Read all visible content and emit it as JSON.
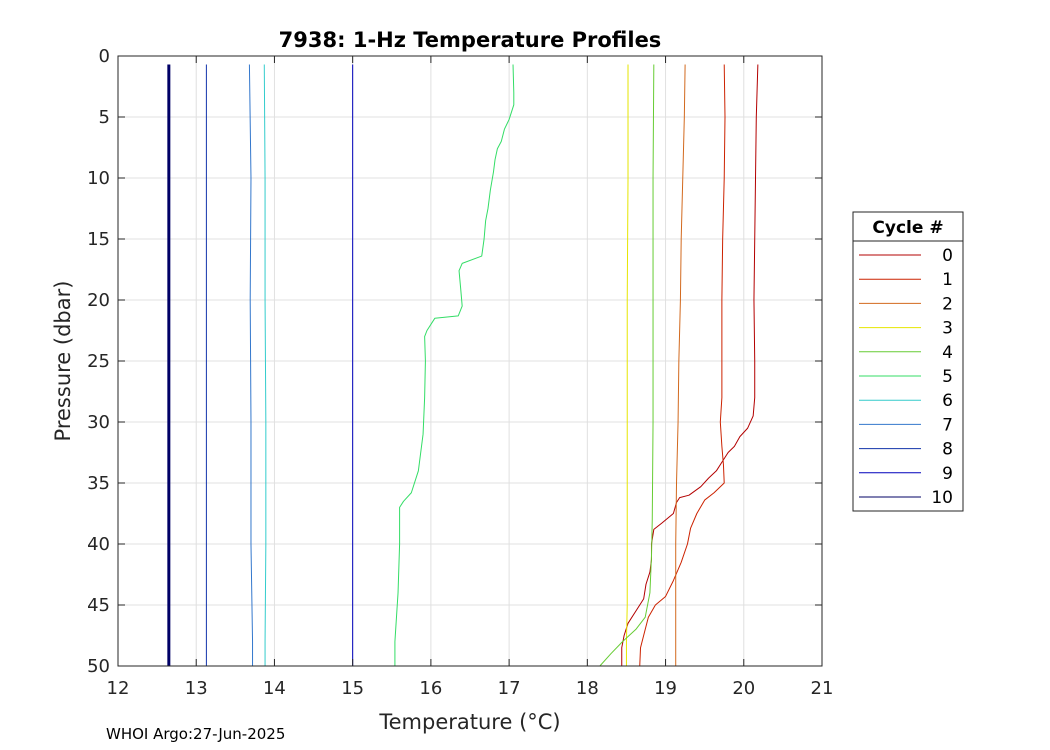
{
  "chart_data": {
    "type": "line",
    "title": "7938: 1-Hz Temperature Profiles",
    "xlabel": "Temperature (°C)",
    "ylabel": "Pressure (dbar)",
    "xlim": [
      12,
      21
    ],
    "ylim": [
      0,
      50
    ],
    "y_reversed": true,
    "grid": true,
    "x_ticks": [
      "12",
      "13",
      "14",
      "15",
      "16",
      "17",
      "18",
      "19",
      "20",
      "21"
    ],
    "y_ticks": [
      "0",
      "5",
      "10",
      "15",
      "20",
      "25",
      "30",
      "35",
      "40",
      "45",
      "50"
    ],
    "legend": {
      "title": "Cycle #",
      "placement": "right"
    },
    "series": [
      {
        "name": "0",
        "color": "#b30000",
        "points": [
          [
            20.18,
            0.7
          ],
          [
            20.16,
            5
          ],
          [
            20.15,
            10
          ],
          [
            20.14,
            15
          ],
          [
            20.13,
            20
          ],
          [
            20.14,
            25
          ],
          [
            20.14,
            28
          ],
          [
            20.12,
            29.5
          ],
          [
            20.05,
            30.5
          ],
          [
            19.95,
            31.2
          ],
          [
            19.88,
            32
          ],
          [
            19.8,
            32.5
          ],
          [
            19.73,
            33.2
          ],
          [
            19.65,
            34
          ],
          [
            19.55,
            34.6
          ],
          [
            19.45,
            35.3
          ],
          [
            19.3,
            36
          ],
          [
            19.18,
            36.2
          ],
          [
            19.14,
            36.6
          ],
          [
            19.1,
            37.5
          ],
          [
            18.95,
            38.3
          ],
          [
            18.85,
            38.8
          ],
          [
            18.82,
            40
          ],
          [
            18.82,
            41.3
          ],
          [
            18.8,
            42.3
          ],
          [
            18.75,
            43.3
          ],
          [
            18.72,
            44.5
          ],
          [
            18.62,
            45.5
          ],
          [
            18.52,
            46.5
          ],
          [
            18.47,
            47.5
          ],
          [
            18.44,
            48.5
          ],
          [
            18.44,
            50
          ]
        ]
      },
      {
        "name": "1",
        "color": "#cc2200",
        "points": [
          [
            19.75,
            0.7
          ],
          [
            19.76,
            5
          ],
          [
            19.75,
            10
          ],
          [
            19.73,
            15
          ],
          [
            19.72,
            20
          ],
          [
            19.72,
            25
          ],
          [
            19.72,
            28
          ],
          [
            19.7,
            30
          ],
          [
            19.72,
            32
          ],
          [
            19.74,
            33.5
          ],
          [
            19.75,
            35
          ],
          [
            19.62,
            35.8
          ],
          [
            19.5,
            36.4
          ],
          [
            19.4,
            37.5
          ],
          [
            19.32,
            38.7
          ],
          [
            19.28,
            40
          ],
          [
            19.2,
            41.5
          ],
          [
            19.1,
            43
          ],
          [
            19.0,
            44.3
          ],
          [
            18.87,
            45
          ],
          [
            18.78,
            46
          ],
          [
            18.72,
            47.5
          ],
          [
            18.68,
            48.5
          ],
          [
            18.67,
            50
          ]
        ]
      },
      {
        "name": "2",
        "color": "#d2691e",
        "points": [
          [
            19.25,
            0.7
          ],
          [
            19.24,
            5
          ],
          [
            19.22,
            10
          ],
          [
            19.2,
            15
          ],
          [
            19.19,
            20
          ],
          [
            19.17,
            25
          ],
          [
            19.16,
            30
          ],
          [
            19.14,
            35
          ],
          [
            19.13,
            40
          ],
          [
            19.13,
            45
          ],
          [
            19.13,
            50
          ]
        ]
      },
      {
        "name": "3",
        "color": "#e6e600",
        "points": [
          [
            18.52,
            0.7
          ],
          [
            18.52,
            10
          ],
          [
            18.51,
            20
          ],
          [
            18.51,
            30
          ],
          [
            18.51,
            40
          ],
          [
            18.51,
            45
          ],
          [
            18.5,
            48
          ],
          [
            18.5,
            50
          ]
        ]
      },
      {
        "name": "4",
        "color": "#66cc33",
        "points": [
          [
            18.85,
            0.7
          ],
          [
            18.84,
            10
          ],
          [
            18.84,
            20
          ],
          [
            18.84,
            30
          ],
          [
            18.83,
            38
          ],
          [
            18.82,
            41
          ],
          [
            18.8,
            44
          ],
          [
            18.74,
            46
          ],
          [
            18.62,
            47
          ],
          [
            18.45,
            48
          ],
          [
            18.3,
            49
          ],
          [
            18.16,
            50
          ]
        ]
      },
      {
        "name": "5",
        "color": "#33dd66",
        "points": [
          [
            17.05,
            0.7
          ],
          [
            17.06,
            3
          ],
          [
            17.06,
            4
          ],
          [
            17.0,
            5.2
          ],
          [
            16.94,
            6
          ],
          [
            16.9,
            7
          ],
          [
            16.85,
            7.6
          ],
          [
            16.82,
            8.5
          ],
          [
            16.8,
            9.5
          ],
          [
            16.76,
            11
          ],
          [
            16.73,
            12.5
          ],
          [
            16.7,
            13.5
          ],
          [
            16.68,
            15
          ],
          [
            16.65,
            16.4
          ],
          [
            16.4,
            17
          ],
          [
            16.36,
            17.6
          ],
          [
            16.38,
            19
          ],
          [
            16.4,
            20.5
          ],
          [
            16.35,
            21.3
          ],
          [
            16.05,
            21.5
          ],
          [
            15.95,
            22.5
          ],
          [
            15.92,
            23
          ],
          [
            15.93,
            25
          ],
          [
            15.92,
            28
          ],
          [
            15.9,
            31
          ],
          [
            15.84,
            34
          ],
          [
            15.75,
            35.8
          ],
          [
            15.65,
            36.5
          ],
          [
            15.6,
            37
          ],
          [
            15.6,
            40
          ],
          [
            15.58,
            44
          ],
          [
            15.56,
            46
          ],
          [
            15.54,
            48
          ],
          [
            15.54,
            50
          ]
        ]
      },
      {
        "name": "6",
        "color": "#33cccc",
        "points": [
          [
            13.87,
            0.7
          ],
          [
            13.88,
            10
          ],
          [
            13.88,
            20
          ],
          [
            13.89,
            30
          ],
          [
            13.89,
            40
          ],
          [
            13.88,
            48
          ],
          [
            13.88,
            50
          ]
        ]
      },
      {
        "name": "7",
        "color": "#3377cc",
        "points": [
          [
            13.68,
            0.7
          ],
          [
            13.7,
            10
          ],
          [
            13.69,
            20
          ],
          [
            13.7,
            30
          ],
          [
            13.7,
            40
          ],
          [
            13.72,
            48
          ],
          [
            13.72,
            50
          ]
        ]
      },
      {
        "name": "8",
        "color": "#1133aa",
        "points": [
          [
            13.13,
            0.7
          ],
          [
            13.13,
            10
          ],
          [
            13.13,
            20
          ],
          [
            13.13,
            30
          ],
          [
            13.13,
            40
          ],
          [
            13.13,
            50
          ]
        ]
      },
      {
        "name": "9",
        "color": "#0000bb",
        "points": [
          [
            15.0,
            0.7
          ],
          [
            15.0,
            10
          ],
          [
            15.0,
            20
          ],
          [
            15.0,
            30
          ],
          [
            15.0,
            40
          ],
          [
            15.0,
            48
          ],
          [
            15.0,
            50
          ]
        ]
      },
      {
        "name": "10",
        "color": "#000066",
        "points": [
          [
            12.65,
            0.7
          ],
          [
            12.65,
            10
          ],
          [
            12.65,
            20
          ],
          [
            12.65,
            30
          ],
          [
            12.65,
            40
          ],
          [
            12.65,
            50
          ]
        ]
      }
    ]
  },
  "footer": "WHOI Argo:27-Jun-2025"
}
